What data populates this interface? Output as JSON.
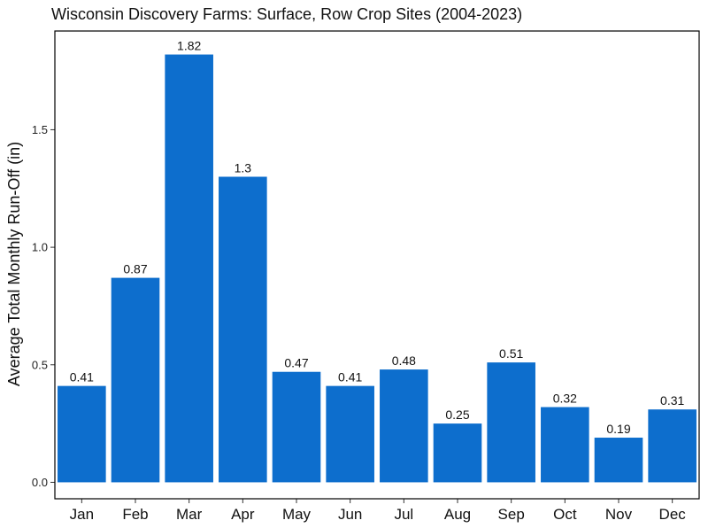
{
  "chart_data": {
    "type": "bar",
    "title": "Wisconsin Discovery Farms: Surface, Row Crop Sites (2004-2023)",
    "xlabel": "",
    "ylabel": "Average Total Monthly Run-Off (in)",
    "categories": [
      "Jan",
      "Feb",
      "Mar",
      "Apr",
      "May",
      "Jun",
      "Jul",
      "Aug",
      "Sep",
      "Oct",
      "Nov",
      "Dec"
    ],
    "values": [
      0.41,
      0.87,
      1.82,
      1.3,
      0.47,
      0.41,
      0.48,
      0.25,
      0.51,
      0.32,
      0.19,
      0.31
    ],
    "data_labels": [
      "0.41",
      "0.87",
      "1.82",
      "1.3",
      "0.47",
      "0.41",
      "0.48",
      "0.25",
      "0.51",
      "0.32",
      "0.19",
      "0.31"
    ],
    "ylim": [
      -0.07,
      1.92
    ],
    "yticks": [
      0.0,
      0.5,
      1.0,
      1.5
    ],
    "ytick_labels": [
      "0.0",
      "0.5",
      "1.0",
      "1.5"
    ],
    "grid": false,
    "legend": "none",
    "colors": {
      "bar": "#0d6ecd",
      "frame": "#000000"
    }
  }
}
